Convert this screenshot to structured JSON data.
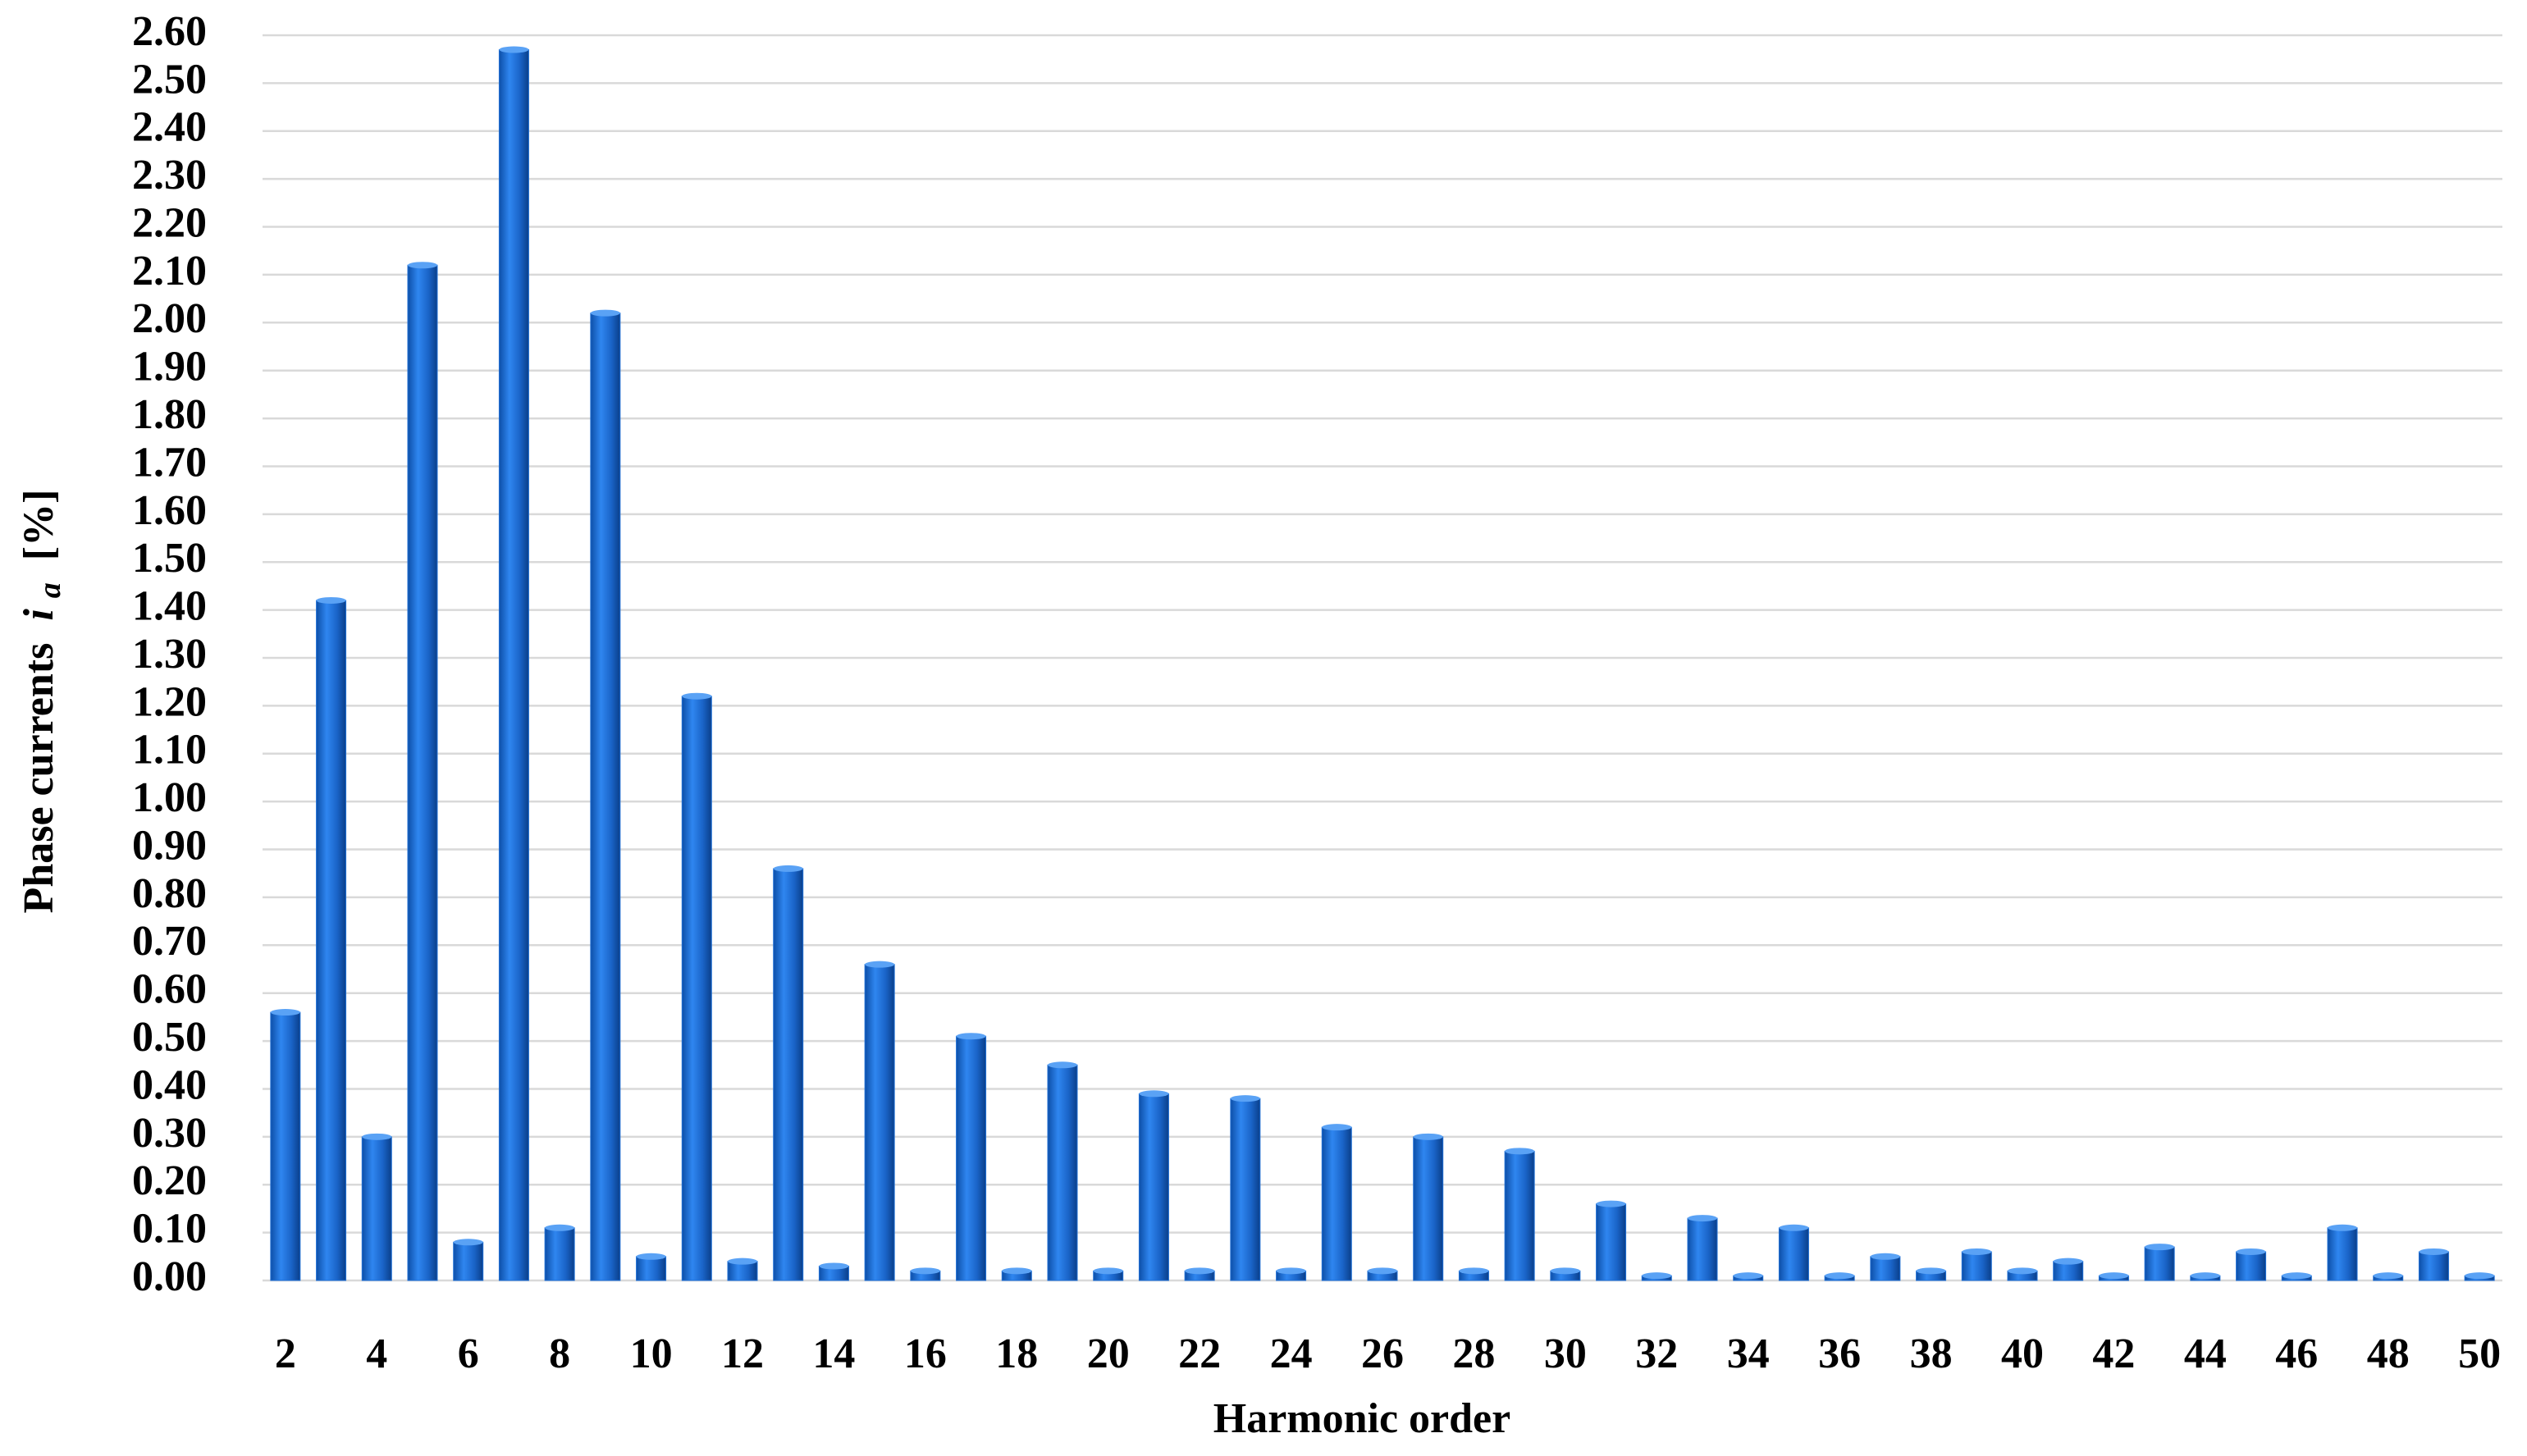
{
  "chart_data": {
    "type": "bar",
    "x_label": "Harmonic order",
    "y_label": {
      "text": "Phase currents",
      "symbol": "i",
      "subscript": "a",
      "unit": "[%]"
    },
    "categories": [
      "2",
      null,
      "4",
      null,
      "6",
      null,
      "8",
      null,
      "10",
      null,
      "12",
      null,
      "14",
      null,
      "16",
      null,
      "18",
      null,
      "20",
      null,
      "22",
      null,
      "24",
      null,
      "26",
      null,
      "28",
      null,
      "30",
      null,
      "32",
      null,
      "34",
      null,
      "36",
      null,
      "38",
      null,
      "40",
      null,
      "42",
      null,
      "44",
      null,
      "46",
      null,
      "48",
      null,
      "50"
    ],
    "values": [
      0.56,
      1.42,
      0.3,
      2.12,
      0.08,
      2.57,
      0.11,
      2.02,
      0.05,
      1.22,
      0.04,
      0.86,
      0.03,
      0.66,
      0.02,
      0.51,
      0.02,
      0.45,
      0.02,
      0.39,
      0.02,
      0.38,
      0.02,
      0.32,
      0.02,
      0.3,
      0.02,
      0.27,
      0.02,
      0.16,
      0.01,
      0.13,
      0.01,
      0.11,
      0.01,
      0.05,
      0.02,
      0.06,
      0.02,
      0.04,
      0.01,
      0.07,
      0.01,
      0.06,
      0.01,
      0.11,
      0.01,
      0.06,
      0.01
    ],
    "color": "#1f6fd6",
    "ylim": [
      0,
      2.6
    ],
    "yticks": [
      {
        "value": 0,
        "label": "0.00"
      },
      {
        "value": 0.1,
        "label": "0.10"
      },
      {
        "value": 0.2,
        "label": "0.20"
      },
      {
        "value": 0.3,
        "label": "0.30"
      },
      {
        "value": 0.4,
        "label": "0.40"
      },
      {
        "value": 0.5,
        "label": "0.50"
      },
      {
        "value": 0.6,
        "label": "0.60"
      },
      {
        "value": 0.7,
        "label": "0.70"
      },
      {
        "value": 0.8,
        "label": "0.80"
      },
      {
        "value": 0.9,
        "label": "0.90"
      },
      {
        "value": 1.0,
        "label": "1.00"
      },
      {
        "value": 1.1,
        "label": "1.10"
      },
      {
        "value": 1.2,
        "label": "1.20"
      },
      {
        "value": 1.3,
        "label": "1.30"
      },
      {
        "value": 1.4,
        "label": "1.40"
      },
      {
        "value": 1.5,
        "label": "1.50"
      },
      {
        "value": 1.6,
        "label": "1.60"
      },
      {
        "value": 1.7,
        "label": "1.70"
      },
      {
        "value": 1.8,
        "label": "1.80"
      },
      {
        "value": 1.9,
        "label": "1.90"
      },
      {
        "value": 2.0,
        "label": "2.00"
      },
      {
        "value": 2.1,
        "label": "2.10"
      },
      {
        "value": 2.2,
        "label": "2.20"
      },
      {
        "value": 2.3,
        "label": "2.30"
      },
      {
        "value": 2.4,
        "label": "2.40"
      },
      {
        "value": 2.5,
        "label": "2.50"
      },
      {
        "value": 2.6,
        "label": "2.60"
      }
    ],
    "grid": true
  }
}
